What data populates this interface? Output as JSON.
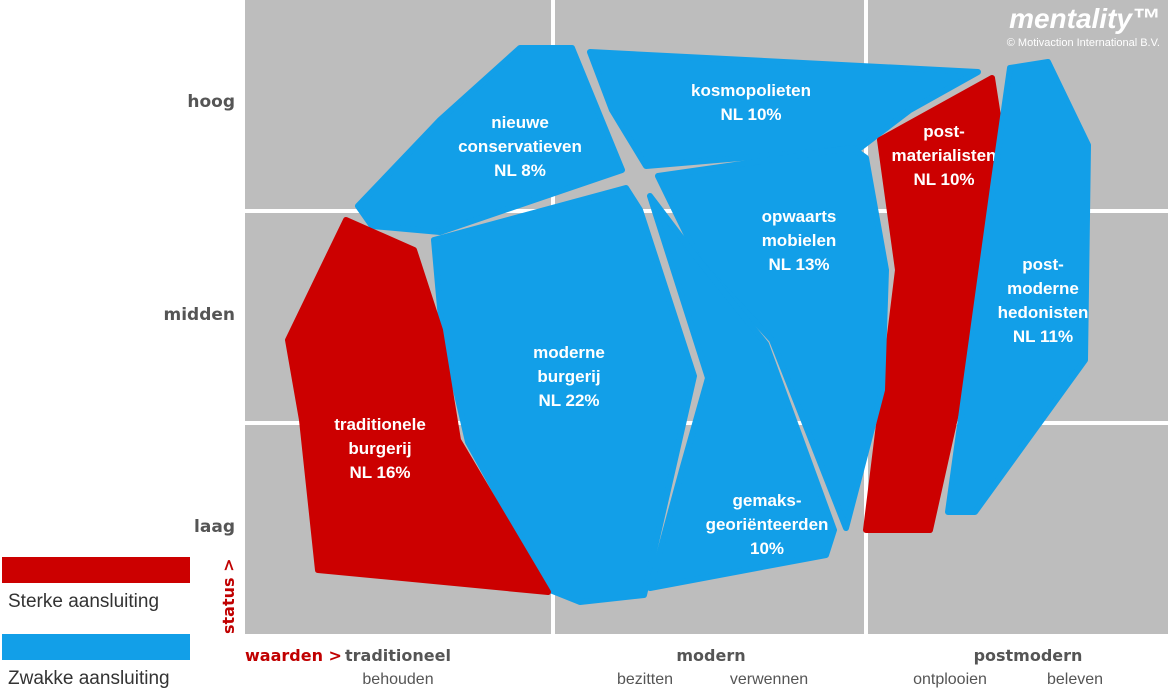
{
  "brand": {
    "name": "mentality™",
    "copyright": "© Motivaction International B.V."
  },
  "y_axis": {
    "title": "status >",
    "levels": [
      "hoog",
      "midden",
      "laag"
    ]
  },
  "x_axis": {
    "title": "waarden >",
    "groups": [
      {
        "label": "traditioneel",
        "subs": [
          "behouden"
        ]
      },
      {
        "label": "modern",
        "subs": [
          "bezitten",
          "verwennen"
        ]
      },
      {
        "label": "postmodern",
        "subs": [
          "ontplooien",
          "beleven"
        ]
      }
    ]
  },
  "legend": [
    {
      "label": "Sterke aansluiting",
      "color": "#cc0000"
    },
    {
      "label": "Zwakke aansluiting",
      "color": "#129fe8"
    }
  ],
  "colors": {
    "strong": "#cc0000",
    "weak": "#129fe8",
    "grid_bg": "#bdbdbd",
    "grid_line": "#ffffff"
  },
  "segments": [
    {
      "id": "nieuwe-conservatieven",
      "lines": [
        "nieuwe",
        "conservatieven",
        "NL 8%"
      ],
      "strength": "weak"
    },
    {
      "id": "kosmopolieten",
      "lines": [
        "kosmopolieten",
        "NL 10%"
      ],
      "strength": "weak"
    },
    {
      "id": "postmaterialisten",
      "lines": [
        "post-",
        "materialisten",
        "NL 10%"
      ],
      "strength": "strong"
    },
    {
      "id": "opwaarts-mobielen",
      "lines": [
        "opwaarts",
        "mobielen",
        "NL 13%"
      ],
      "strength": "weak"
    },
    {
      "id": "postmoderne-hedonisten",
      "lines": [
        "post-",
        "moderne",
        "hedonisten",
        "NL 11%"
      ],
      "strength": "weak"
    },
    {
      "id": "moderne-burgerij",
      "lines": [
        "moderne",
        "burgerij",
        "NL 22%"
      ],
      "strength": "weak"
    },
    {
      "id": "traditionele-burgerij",
      "lines": [
        "traditionele",
        "burgerij",
        "NL 16%"
      ],
      "strength": "strong"
    },
    {
      "id": "gemaksgeorienteerden",
      "lines": [
        "gemaks-",
        "georiënteerden",
        "10%"
      ],
      "strength": "weak"
    }
  ]
}
